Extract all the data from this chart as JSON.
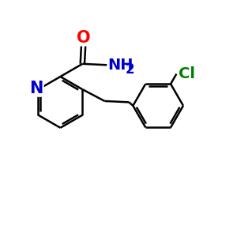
{
  "background_color": "#ffffff",
  "bond_color": "#000000",
  "N_color": "#0000cc",
  "O_color": "#ff0000",
  "Cl_color": "#008000",
  "line_width": 1.8,
  "font_size_atoms": 13,
  "fig_size": [
    3.0,
    3.0
  ],
  "dpi": 100,
  "xlim": [
    0,
    10
  ],
  "ylim": [
    0,
    10
  ]
}
